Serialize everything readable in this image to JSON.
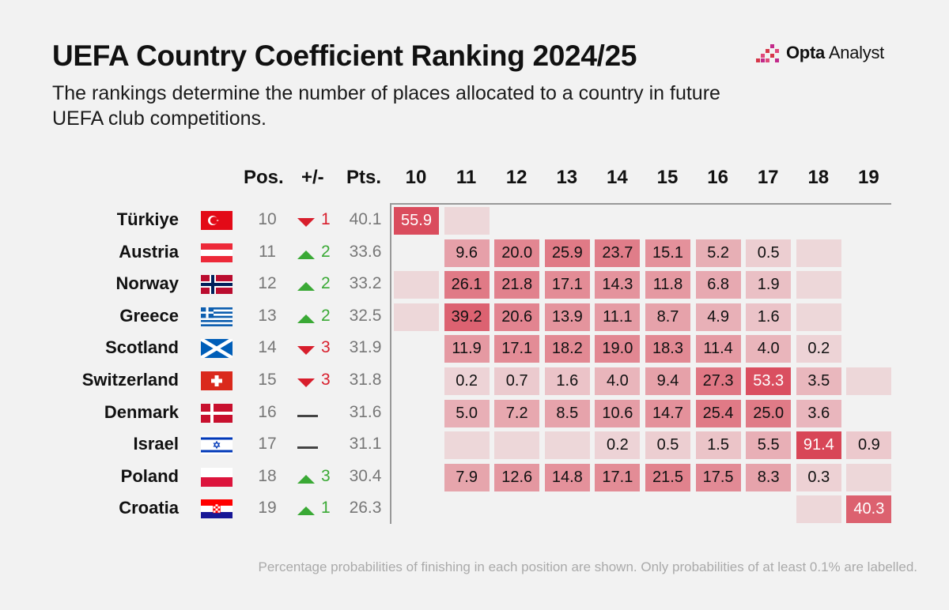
{
  "title": "UEFA Country Coefficient Ranking 2024/25",
  "subtitle": "The rankings determine the number of places allocated to a country in future UEFA club competitions.",
  "logo": {
    "brand": "Opta",
    "suffix": "Analyst"
  },
  "headers": {
    "pos": "Pos.",
    "change": "+/-",
    "pts": "Pts."
  },
  "footnote": "Percentage probabilities of finishing in each position are shown. Only probabilities of at least 0.1% are labelled.",
  "colors": {
    "up": "#3aa935",
    "down": "#d81e2c",
    "cell_base": "#d6374a"
  },
  "chart_data": {
    "type": "heatmap",
    "title": "UEFA Country Coefficient Ranking 2024/25",
    "x": [
      "10",
      "11",
      "12",
      "13",
      "14",
      "15",
      "16",
      "17",
      "18",
      "19"
    ],
    "rows": [
      {
        "country": "Türkiye",
        "flag": "turkey",
        "pos": "10",
        "dir": "down",
        "change": "1",
        "pts": "40.1",
        "values": [
          55.9,
          0.05,
          null,
          null,
          null,
          null,
          null,
          null,
          null,
          null
        ]
      },
      {
        "country": "Austria",
        "flag": "austria",
        "pos": "11",
        "dir": "up",
        "change": "2",
        "pts": "33.6",
        "values": [
          null,
          9.6,
          20.0,
          25.9,
          23.7,
          15.1,
          5.2,
          0.5,
          0.05,
          null
        ]
      },
      {
        "country": "Norway",
        "flag": "norway",
        "pos": "12",
        "dir": "up",
        "change": "2",
        "pts": "33.2",
        "values": [
          0.05,
          26.1,
          21.8,
          17.1,
          14.3,
          11.8,
          6.8,
          1.9,
          0.05,
          null
        ]
      },
      {
        "country": "Greece",
        "flag": "greece",
        "pos": "13",
        "dir": "up",
        "change": "2",
        "pts": "32.5",
        "values": [
          0.05,
          39.2,
          20.6,
          13.9,
          11.1,
          8.7,
          4.9,
          1.6,
          0.05,
          null
        ]
      },
      {
        "country": "Scotland",
        "flag": "scotland",
        "pos": "14",
        "dir": "down",
        "change": "3",
        "pts": "31.9",
        "values": [
          null,
          11.9,
          17.1,
          18.2,
          19.0,
          18.3,
          11.4,
          4.0,
          0.2,
          null
        ]
      },
      {
        "country": "Switzerland",
        "flag": "switzerland",
        "pos": "15",
        "dir": "down",
        "change": "3",
        "pts": "31.8",
        "values": [
          null,
          0.2,
          0.7,
          1.6,
          4.0,
          9.4,
          27.3,
          53.3,
          3.5,
          0.05
        ]
      },
      {
        "country": "Denmark",
        "flag": "denmark",
        "pos": "16",
        "dir": "same",
        "change": "",
        "pts": "31.6",
        "values": [
          null,
          5.0,
          7.2,
          8.5,
          10.6,
          14.7,
          25.4,
          25.0,
          3.6,
          null
        ]
      },
      {
        "country": "Israel",
        "flag": "israel",
        "pos": "17",
        "dir": "same",
        "change": "",
        "pts": "31.1",
        "values": [
          null,
          0.05,
          0.05,
          0.05,
          0.2,
          0.5,
          1.5,
          5.5,
          91.4,
          0.9
        ]
      },
      {
        "country": "Poland",
        "flag": "poland",
        "pos": "18",
        "dir": "up",
        "change": "3",
        "pts": "30.4",
        "values": [
          null,
          7.9,
          12.6,
          14.8,
          17.1,
          21.5,
          17.5,
          8.3,
          0.3,
          0.05
        ]
      },
      {
        "country": "Croatia",
        "flag": "croatia",
        "pos": "19",
        "dir": "up",
        "change": "1",
        "pts": "26.3",
        "values": [
          null,
          null,
          null,
          null,
          null,
          null,
          null,
          null,
          0.05,
          40.3
        ]
      }
    ]
  }
}
